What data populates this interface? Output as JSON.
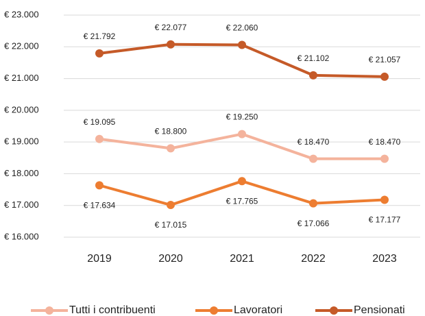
{
  "chart_data": {
    "type": "line",
    "categories": [
      "2019",
      "2020",
      "2021",
      "2022",
      "2023"
    ],
    "series": [
      {
        "name": "Tutti i contribuenti",
        "color": "#f4b39c",
        "values": [
          19095,
          18800,
          19250,
          18470,
          18470
        ],
        "value_labels": [
          "€ 19.095",
          "€ 18.800",
          "€ 19.250",
          "€ 18.470",
          "€ 18.470"
        ]
      },
      {
        "name": "Lavoratori",
        "color": "#ed7d31",
        "values": [
          17634,
          17015,
          17765,
          17066,
          17177
        ],
        "value_labels": [
          "€ 17.634",
          "€ 17.015",
          "€ 17.765",
          "€ 17.066",
          "€ 17.177"
        ]
      },
      {
        "name": "Pensionati",
        "color": "#c55a28",
        "values": [
          21792,
          22077,
          22060,
          21102,
          21057
        ],
        "value_labels": [
          "€ 21.792",
          "€ 22.077",
          "€ 22.060",
          "€ 21.102",
          "€ 21.057"
        ]
      }
    ],
    "ylim": [
      16000,
      23000
    ],
    "yticks": [
      {
        "value": 16000,
        "label": "€ 16.000"
      },
      {
        "value": 17000,
        "label": "€ 17.000"
      },
      {
        "value": 18000,
        "label": "€ 18.000"
      },
      {
        "value": 19000,
        "label": "€ 19.000"
      },
      {
        "value": 20000,
        "label": "€ 20.000"
      },
      {
        "value": 21000,
        "label": "€ 21.000"
      },
      {
        "value": 22000,
        "label": "€ 22.000"
      },
      {
        "value": 23000,
        "label": "€ 23.000"
      }
    ],
    "grid": true,
    "legend": "bottom"
  }
}
